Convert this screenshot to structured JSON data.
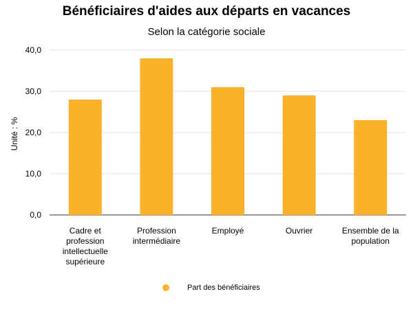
{
  "chart_data": {
    "type": "bar",
    "title": "Bénéficiaires d'aides aux départs en vacances",
    "subtitle": "Selon la catégorie sociale",
    "ylabel": "Unité : %",
    "xlabel": "",
    "ylim": [
      0,
      40
    ],
    "yticks": [
      "0,0",
      "10,0",
      "20,0",
      "30,0",
      "40,0"
    ],
    "categories": [
      [
        "Cadre et",
        "profession",
        "intellectuelle",
        "supérieure"
      ],
      [
        "Profession",
        "intermédiaire"
      ],
      [
        "Employé"
      ],
      [
        "Ouvrier"
      ],
      [
        "Ensemble de la",
        "population"
      ]
    ],
    "series": [
      {
        "name": "Part des bénéficiaires",
        "values": [
          28,
          38,
          31,
          29,
          23
        ]
      }
    ],
    "bar_color": "#FBB12A",
    "grid": true,
    "legend_position": "bottom"
  }
}
